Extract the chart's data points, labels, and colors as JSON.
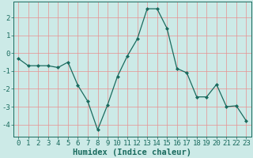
{
  "x": [
    0,
    1,
    2,
    3,
    4,
    5,
    6,
    7,
    8,
    9,
    10,
    11,
    12,
    13,
    14,
    15,
    16,
    17,
    18,
    19,
    20,
    21,
    22,
    23
  ],
  "y": [
    -0.3,
    -0.7,
    -0.7,
    -0.7,
    -0.8,
    -0.5,
    -1.8,
    -2.7,
    -4.3,
    -2.9,
    -1.3,
    -0.15,
    0.8,
    2.5,
    2.5,
    1.4,
    -0.85,
    -1.1,
    -2.45,
    -2.45,
    -1.75,
    -3.0,
    -2.95,
    -3.8
  ],
  "line_color": "#1a6b5e",
  "marker": "D",
  "marker_size": 2.0,
  "bg_color": "#cceae7",
  "grid_color": "#e89090",
  "xlabel": "Humidex (Indice chaleur)",
  "xlim": [
    -0.5,
    23.5
  ],
  "ylim": [
    -4.7,
    2.9
  ],
  "yticks": [
    -4,
    -3,
    -2,
    -1,
    0,
    1,
    2
  ],
  "xticks": [
    0,
    1,
    2,
    3,
    4,
    5,
    6,
    7,
    8,
    9,
    10,
    11,
    12,
    13,
    14,
    15,
    16,
    17,
    18,
    19,
    20,
    21,
    22,
    23
  ],
  "font_color": "#1a6b5e",
  "tick_fontsize": 6.5,
  "xlabel_fontsize": 7.5,
  "linewidth": 0.9
}
